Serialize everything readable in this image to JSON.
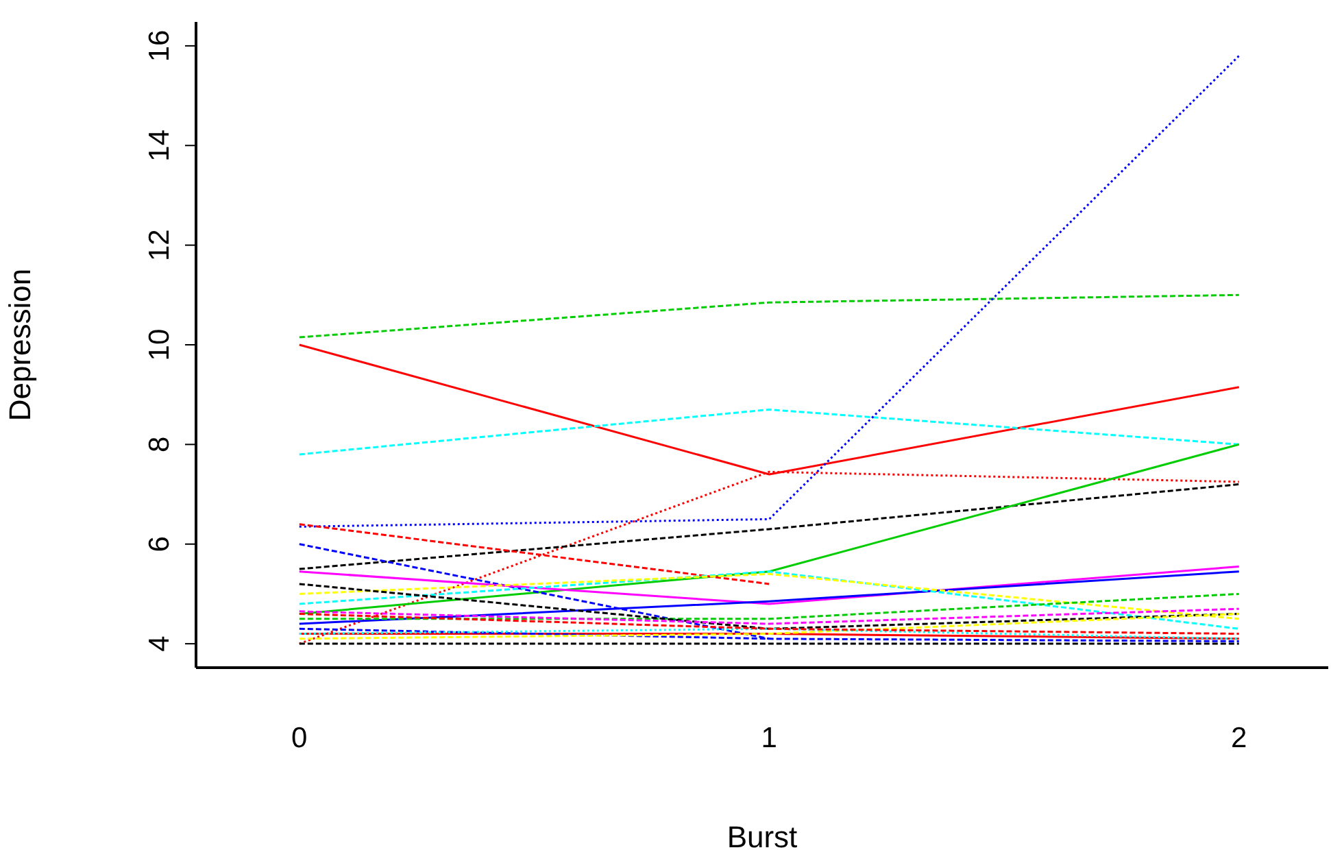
{
  "chart_data": {
    "type": "line",
    "xlabel": "Burst",
    "ylabel": "Depression",
    "x": [
      0,
      1,
      2
    ],
    "xlim": [
      -0.22,
      2.19
    ],
    "xticks": [
      0,
      1,
      2
    ],
    "ylim": [
      3.52,
      16.48
    ],
    "yticks": [
      4,
      6,
      8,
      10,
      12,
      14,
      16
    ],
    "marker": "none",
    "series": [
      {
        "color": "#00cd00",
        "line_style": "dashed",
        "values": [
          10.15,
          10.85,
          11.0
        ]
      },
      {
        "color": "#ff0000",
        "line_style": "solid",
        "values": [
          10.0,
          7.4,
          9.15
        ]
      },
      {
        "color": "#00ffff",
        "line_style": "dashed",
        "values": [
          7.8,
          8.7,
          8.0
        ]
      },
      {
        "color": "#0000ff",
        "line_style": "dotted",
        "values": [
          6.35,
          6.5,
          15.8
        ]
      },
      {
        "color": "#ff0000",
        "line_style": "dotted",
        "values": [
          4.0,
          7.45,
          7.25
        ]
      },
      {
        "color": "#000000",
        "line_style": "dashed",
        "values": [
          5.5,
          6.3,
          7.2
        ]
      },
      {
        "color": "#00cd00",
        "line_style": "solid",
        "values": [
          4.6,
          5.45,
          8.0
        ]
      },
      {
        "color": "#ff0000",
        "line_style": "dashed",
        "values": [
          6.4,
          5.2,
          null
        ]
      },
      {
        "color": "#0000ff",
        "line_style": "dashed",
        "values": [
          6.0,
          4.1,
          null
        ]
      },
      {
        "color": "#ff00ff",
        "line_style": "solid",
        "values": [
          5.45,
          4.8,
          5.55
        ]
      },
      {
        "color": "#0000ff",
        "line_style": "solid",
        "values": [
          4.4,
          4.85,
          5.45
        ]
      },
      {
        "color": "#00ffff",
        "line_style": "dashed",
        "values": [
          4.8,
          5.45,
          4.3
        ]
      },
      {
        "color": "#ffff00",
        "line_style": "dashed",
        "values": [
          5.0,
          5.4,
          4.5
        ]
      },
      {
        "color": "#00cd00",
        "line_style": "dashed",
        "values": [
          4.5,
          4.5,
          5.0
        ]
      },
      {
        "color": "#000000",
        "line_style": "dashed",
        "values": [
          5.2,
          4.3,
          4.6
        ]
      },
      {
        "color": "#000000",
        "line_style": "dashed",
        "values": [
          4.0,
          4.0,
          4.0
        ]
      },
      {
        "color": "#ff0000",
        "line_style": "solid",
        "values": [
          4.2,
          4.2,
          4.1
        ]
      },
      {
        "color": "#0000ff",
        "line_style": "dashed",
        "values": [
          4.3,
          4.1,
          4.05
        ]
      },
      {
        "color": "#ffff00",
        "line_style": "dashed",
        "values": [
          4.1,
          4.2,
          4.6
        ]
      },
      {
        "color": "#ff00ff",
        "line_style": "dashed",
        "values": [
          4.65,
          4.4,
          4.7
        ]
      },
      {
        "color": "#00ffff",
        "line_style": "dotted",
        "values": [
          4.2,
          4.3,
          4.1
        ]
      },
      {
        "color": "#ff0000",
        "line_style": "dashed",
        "values": [
          4.6,
          4.3,
          4.2
        ]
      }
    ]
  }
}
